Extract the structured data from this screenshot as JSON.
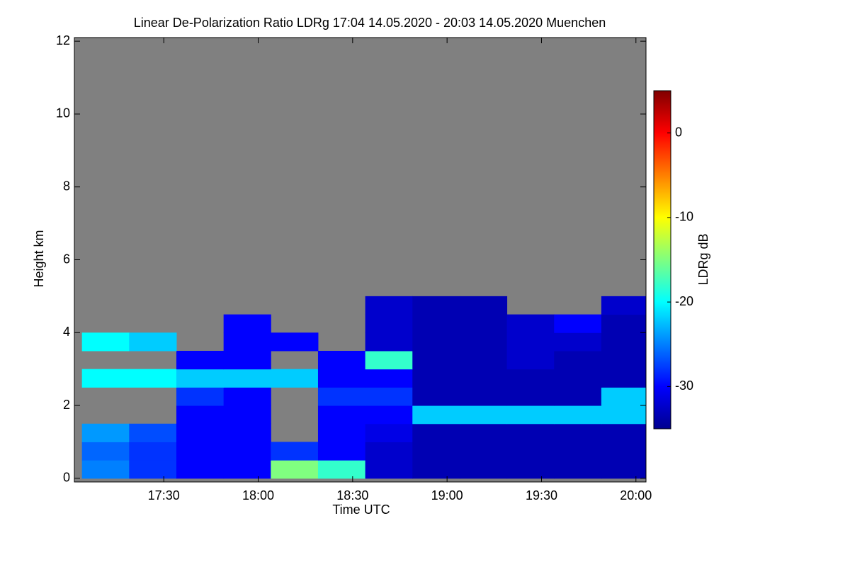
{
  "chart_data": {
    "type": "heatmap",
    "title": "Linear De-Polarization Ratio LDRg   17:04 14.05.2020 - 20:03 14.05.2020 Muenchen",
    "x_label": "Time UTC",
    "y_label": "Height km",
    "colorbar_label": "LDRg dB",
    "xlim": [
      1021.6,
      1203.2
    ],
    "xticks": [
      {
        "value": 1050,
        "label": "17:30"
      },
      {
        "value": 1080,
        "label": "18:00"
      },
      {
        "value": 1110,
        "label": "18:30"
      },
      {
        "value": 1140,
        "label": "19:00"
      },
      {
        "value": 1170,
        "label": "19:30"
      },
      {
        "value": 1200,
        "label": "20:00"
      }
    ],
    "ylim": [
      -0.1,
      12.1
    ],
    "yticks": [
      0,
      2,
      4,
      6,
      8,
      10,
      12
    ],
    "zlim": [
      -35,
      5
    ],
    "zticks": [
      0,
      -10,
      -20,
      -30
    ],
    "background": "#808080",
    "x_bins": [
      1024,
      1039,
      1054,
      1069,
      1084,
      1099,
      1114,
      1129,
      1144,
      1159,
      1174,
      1189,
      1203
    ],
    "y_bins": [
      0,
      0.5,
      1,
      1.5,
      2,
      2.5,
      3,
      3.5,
      4,
      4.5,
      5
    ],
    "values": [
      [
        -25,
        -28,
        -30,
        -30,
        -15,
        -18,
        -32,
        -33,
        -33,
        -33,
        -33,
        -33
      ],
      [
        -26,
        -28,
        -30,
        -30,
        -28,
        -30,
        -32,
        -33,
        -33,
        -33,
        -33,
        -33
      ],
      [
        -24,
        -27,
        -30,
        -30,
        null,
        -30,
        -31,
        -33,
        -33,
        -33,
        -33,
        -33
      ],
      [
        null,
        null,
        -30,
        -30,
        null,
        -30,
        -30,
        -22,
        -22,
        -22,
        -22,
        -22
      ],
      [
        null,
        null,
        -28,
        -30,
        null,
        -28,
        -28,
        -33,
        -33,
        -33,
        -33,
        -22
      ],
      [
        -20,
        -20,
        -22,
        -22,
        -22,
        -30,
        -30,
        -33,
        -33,
        -33,
        -33,
        -33
      ],
      [
        null,
        null,
        -30,
        -30,
        null,
        -30,
        -18,
        -33,
        -33,
        -32,
        -33,
        -33
      ],
      [
        -20,
        -22,
        null,
        -30,
        -30,
        null,
        -32,
        -33,
        -33,
        -32,
        -32,
        -33
      ],
      [
        null,
        null,
        null,
        -30,
        null,
        null,
        -32,
        -33,
        -33,
        -32,
        -30,
        -33
      ],
      [
        null,
        null,
        null,
        null,
        null,
        null,
        -32,
        -33,
        -33,
        null,
        null,
        -32
      ]
    ]
  }
}
